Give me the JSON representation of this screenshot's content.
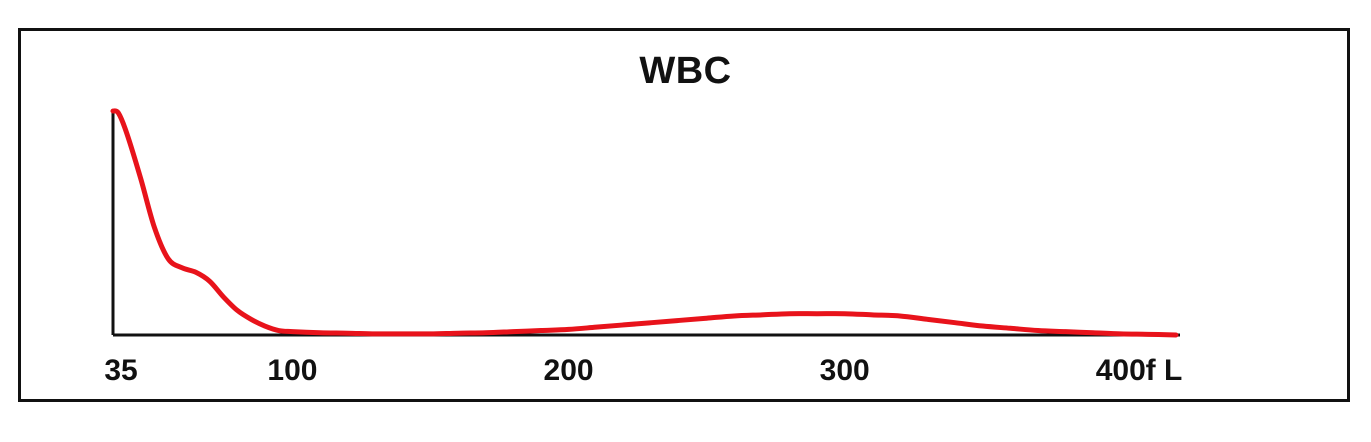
{
  "chart_data": {
    "type": "line",
    "title": "WBC",
    "xlabel": "",
    "ylabel": "",
    "x_unit": "fL",
    "xlim": [
      35,
      420
    ],
    "ylim": [
      0,
      100
    ],
    "xticks": [
      35,
      100,
      200,
      300,
      400
    ],
    "grid": false,
    "legend": "none",
    "line_color": "#e8131b",
    "axis_color": "#111111",
    "series": [
      {
        "x": [
          35,
          37,
          40,
          45,
          50,
          55,
          60,
          65,
          70,
          75,
          80,
          85,
          90,
          95,
          100,
          110,
          120,
          130,
          140,
          150,
          160,
          170,
          180,
          190,
          200,
          210,
          220,
          230,
          240,
          250,
          260,
          270,
          280,
          290,
          300,
          310,
          320,
          330,
          340,
          350,
          360,
          370,
          380,
          390,
          400,
          410,
          420
        ],
        "y": [
          100,
          99,
          90,
          70,
          48,
          34,
          30,
          28,
          24,
          17,
          11,
          7,
          4,
          2,
          1.5,
          1,
          0.8,
          0.5,
          0.5,
          0.5,
          0.8,
          1,
          1.5,
          2,
          2.5,
          3.5,
          4.5,
          5.5,
          6.5,
          7.5,
          8.5,
          9,
          9.5,
          9.5,
          9.5,
          9,
          8.5,
          7,
          5.5,
          4,
          3,
          2,
          1.5,
          1,
          0.5,
          0.3,
          0
        ]
      }
    ]
  }
}
